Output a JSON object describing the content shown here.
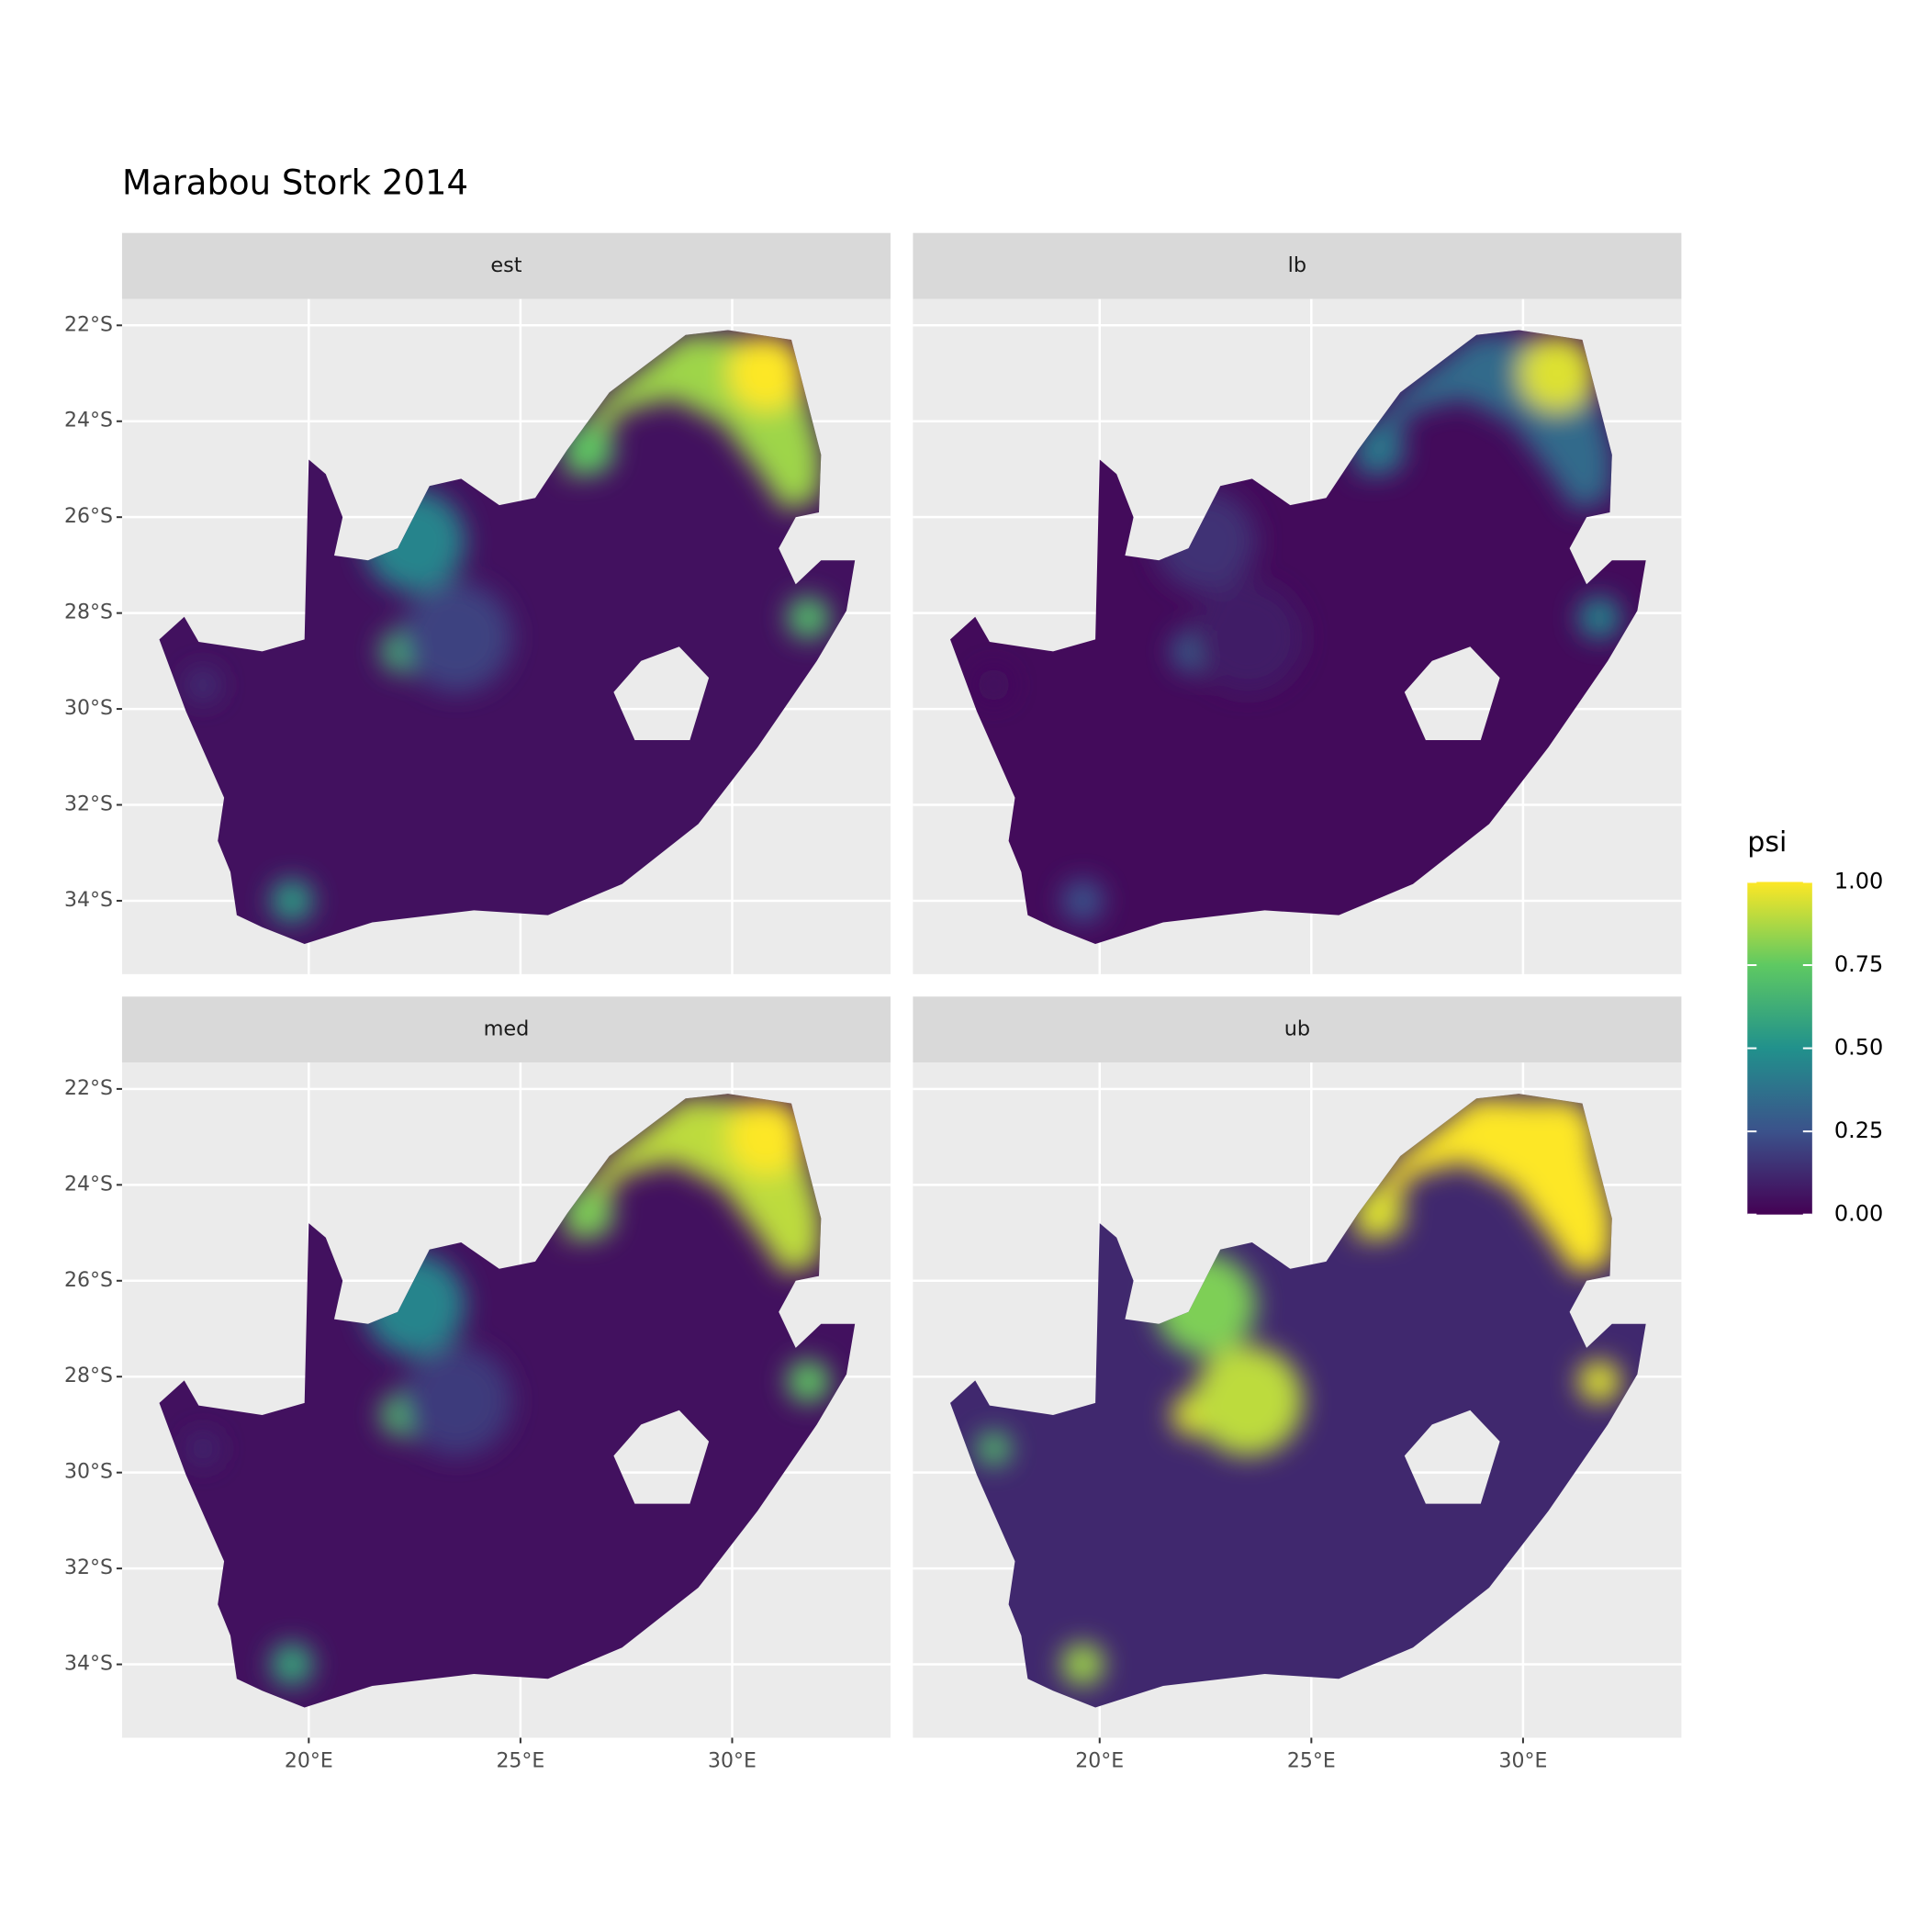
{
  "chart_data": {
    "type": "map",
    "title": "Marabou Stork 2014",
    "xlim": [
      15.59,
      33.74
    ],
    "ylim": [
      -35.53,
      -21.45
    ],
    "xticks": [
      {
        "value": 20,
        "label": "20°E"
      },
      {
        "value": 25,
        "label": "25°E"
      },
      {
        "value": 30,
        "label": "30°E"
      }
    ],
    "yticks": [
      {
        "value": -22,
        "label": "22°S"
      },
      {
        "value": -24,
        "label": "24°S"
      },
      {
        "value": -26,
        "label": "26°S"
      },
      {
        "value": -28,
        "label": "28°S"
      },
      {
        "value": -30,
        "label": "30°S"
      },
      {
        "value": -32,
        "label": "32°S"
      },
      {
        "value": -34,
        "label": "34°S"
      }
    ],
    "grid": true,
    "legend": {
      "title": "psi",
      "position": "right",
      "lim": [
        0,
        1
      ],
      "ticks": [
        {
          "value": 0,
          "label": "0.00"
        },
        {
          "value": 0.25,
          "label": "0.25"
        },
        {
          "value": 0.5,
          "label": "0.50"
        },
        {
          "value": 0.75,
          "label": "0.75"
        },
        {
          "value": 1,
          "label": "1.00"
        }
      ],
      "colors": [
        "#440154",
        "#3b528b",
        "#21918c",
        "#5ec962",
        "#fde725"
      ]
    },
    "boundary": [
      [
        16.47,
        -28.55
      ],
      [
        17.06,
        -28.08
      ],
      [
        17.4,
        -28.6
      ],
      [
        18.9,
        -28.8
      ],
      [
        19.9,
        -28.55
      ],
      [
        20.0,
        -24.8
      ],
      [
        20.4,
        -25.1
      ],
      [
        20.8,
        -26.0
      ],
      [
        20.6,
        -26.8
      ],
      [
        21.4,
        -26.9
      ],
      [
        22.1,
        -26.65
      ],
      [
        22.85,
        -25.35
      ],
      [
        23.6,
        -25.2
      ],
      [
        24.5,
        -25.75
      ],
      [
        25.35,
        -25.6
      ],
      [
        26.1,
        -24.6
      ],
      [
        27.1,
        -23.4
      ],
      [
        28.9,
        -22.2
      ],
      [
        29.9,
        -22.1
      ],
      [
        31.4,
        -22.3
      ],
      [
        32.1,
        -24.7
      ],
      [
        32.05,
        -25.9
      ],
      [
        31.5,
        -26.0
      ],
      [
        31.1,
        -26.65
      ],
      [
        31.5,
        -27.4
      ],
      [
        32.1,
        -26.9
      ],
      [
        32.9,
        -26.9
      ],
      [
        32.7,
        -27.95
      ],
      [
        32.0,
        -29.0
      ],
      [
        30.6,
        -30.8
      ],
      [
        29.2,
        -32.4
      ],
      [
        27.4,
        -33.65
      ],
      [
        25.65,
        -34.3
      ],
      [
        23.9,
        -34.2
      ],
      [
        21.5,
        -34.45
      ],
      [
        19.9,
        -34.9
      ],
      [
        18.9,
        -34.55
      ],
      [
        18.3,
        -34.3
      ],
      [
        18.15,
        -33.4
      ],
      [
        17.85,
        -32.75
      ],
      [
        18.0,
        -31.85
      ],
      [
        17.1,
        -30.05
      ]
    ],
    "hole": [
      [
        28.75,
        -28.7
      ],
      [
        29.45,
        -29.35
      ],
      [
        29.0,
        -30.65
      ],
      [
        27.7,
        -30.65
      ],
      [
        27.2,
        -29.65
      ],
      [
        27.85,
        -29.0
      ]
    ],
    "region": [
      [
        28.88,
        -22.18
      ],
      [
        31.38,
        -22.29
      ],
      [
        32.12,
        -24.7
      ],
      [
        32.06,
        -25.61
      ],
      [
        31.24,
        -25.87
      ],
      [
        30.65,
        -25.09
      ],
      [
        29.76,
        -24.05
      ],
      [
        28.59,
        -23.53
      ],
      [
        27.41,
        -23.79
      ],
      [
        26.82,
        -24.57
      ],
      [
        26.09,
        -25.22
      ],
      [
        26.09,
        -24.57
      ],
      [
        27.12,
        -23.4
      ]
    ],
    "spots": [
      {
        "lon": 30.8,
        "lat": -23.0,
        "r": 0.9
      },
      {
        "lon": 26.6,
        "lat": -24.6,
        "r": 0.6
      },
      {
        "lon": 31.8,
        "lat": -28.1,
        "r": 0.5
      },
      {
        "lon": 22.2,
        "lat": -28.8,
        "r": 0.5
      },
      {
        "lon": 22.5,
        "lat": -26.5,
        "r": 1.2
      },
      {
        "lon": 19.6,
        "lat": -34.0,
        "r": 0.5
      },
      {
        "lon": 23.5,
        "lat": -28.5,
        "r": 1.3
      },
      {
        "lon": 17.5,
        "lat": -29.5,
        "r": 0.4
      }
    ],
    "facets": [
      {
        "label": "est",
        "base_psi": 0.05,
        "region_psi": 0.85,
        "spot_psi": [
          1.0,
          0.75,
          0.7,
          0.65,
          0.45,
          0.55,
          0.2,
          0.15
        ]
      },
      {
        "label": "lb",
        "base_psi": 0.03,
        "region_psi": 0.35,
        "spot_psi": [
          0.95,
          0.4,
          0.45,
          0.3,
          0.15,
          0.25,
          0.08,
          0.05
        ]
      },
      {
        "label": "med",
        "base_psi": 0.05,
        "region_psi": 0.9,
        "spot_psi": [
          1.0,
          0.8,
          0.75,
          0.7,
          0.45,
          0.6,
          0.18,
          0.12
        ]
      },
      {
        "label": "ub",
        "base_psi": 0.12,
        "region_psi": 1.0,
        "spot_psi": [
          1.0,
          0.95,
          0.95,
          0.95,
          0.8,
          0.85,
          0.9,
          0.7
        ]
      }
    ]
  }
}
